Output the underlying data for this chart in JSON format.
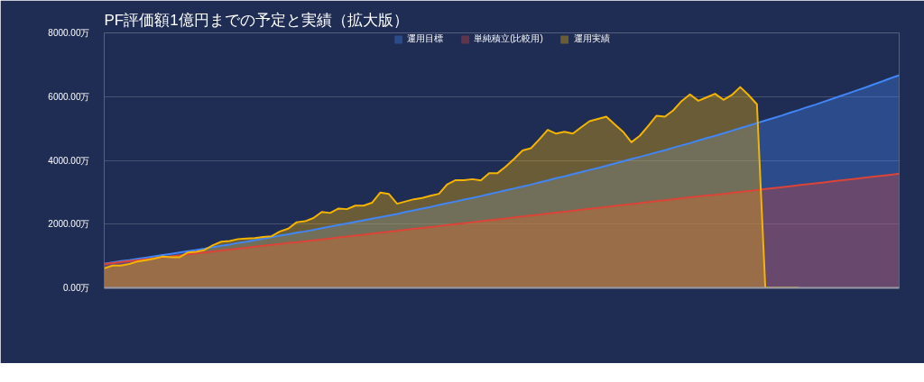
{
  "chart_data": {
    "type": "area",
    "title": "PF評価額1億円までの予定と実績（拡大版）",
    "categories": [
      null,
      null,
      null,
      null,
      null,
      null,
      null,
      null,
      null,
      null,
      null,
      null,
      null,
      null,
      null,
      null,
      null,
      null,
      null,
      null,
      null,
      null,
      null,
      null,
      null,
      null,
      null,
      null,
      null,
      null,
      null,
      null,
      null,
      null,
      null,
      null,
      null,
      null,
      null,
      null,
      null,
      null,
      null,
      null,
      null,
      null,
      null,
      null,
      null,
      null,
      null,
      null,
      null,
      null,
      null,
      null,
      null,
      null,
      null,
      null,
      null,
      null,
      null,
      null,
      null,
      null,
      null,
      null,
      null,
      null,
      null,
      null,
      null,
      null,
      null,
      null,
      null,
      null,
      null,
      null,
      null,
      null,
      null,
      null,
      null,
      null,
      null,
      null,
      null,
      null,
      null,
      null,
      null,
      null,
      null,
      null
    ],
    "ylim": [
      0,
      8000
    ],
    "yticks": [
      {
        "value": 0,
        "label": "0.00万"
      },
      {
        "value": 2000,
        "label": "2000.00万"
      },
      {
        "value": 4000,
        "label": "4000.00万"
      },
      {
        "value": 6000,
        "label": "6000.00万"
      },
      {
        "value": 8000,
        "label": "8000.00万"
      }
    ],
    "tick_labels": "y",
    "grid": "y",
    "legend": "top",
    "series": [
      {
        "name": "運用目標",
        "color": "#4285f4",
        "values": [
          760,
          800,
          840,
          870,
          910,
          950,
          990,
          1030,
          1070,
          1110,
          1150,
          1190,
          1230,
          1280,
          1320,
          1360,
          1410,
          1450,
          1500,
          1540,
          1590,
          1640,
          1680,
          1730,
          1770,
          1820,
          1870,
          1920,
          1970,
          2020,
          2070,
          2120,
          2170,
          2220,
          2270,
          2320,
          2380,
          2430,
          2490,
          2540,
          2600,
          2660,
          2710,
          2770,
          2820,
          2880,
          2940,
          3000,
          3060,
          3120,
          3180,
          3240,
          3310,
          3370,
          3440,
          3500,
          3570,
          3630,
          3700,
          3760,
          3830,
          3900,
          3970,
          4040,
          4110,
          4180,
          4250,
          4320,
          4400,
          4470,
          4540,
          4620,
          4700,
          4770,
          4850,
          4930,
          5010,
          5090,
          5170,
          5250,
          5330,
          5410,
          5500,
          5580,
          5670,
          5750,
          5840,
          5930,
          6020,
          6110,
          6200,
          6290,
          6390,
          6480,
          6580,
          6670
        ]
      },
      {
        "name": "単純積立(比較用)",
        "color": "#db4437",
        "values": [
          750,
          780,
          810,
          840,
          870,
          900,
          930,
          960,
          990,
          1020,
          1050,
          1080,
          1110,
          1140,
          1170,
          1200,
          1230,
          1260,
          1290,
          1320,
          1350,
          1380,
          1410,
          1430,
          1460,
          1490,
          1520,
          1550,
          1580,
          1610,
          1640,
          1670,
          1700,
          1730,
          1760,
          1790,
          1820,
          1850,
          1880,
          1910,
          1940,
          1970,
          2000,
          2030,
          2060,
          2090,
          2120,
          2150,
          2180,
          2210,
          2240,
          2270,
          2300,
          2330,
          2360,
          2390,
          2420,
          2450,
          2480,
          2510,
          2540,
          2570,
          2600,
          2630,
          2660,
          2690,
          2720,
          2750,
          2780,
          2810,
          2840,
          2870,
          2900,
          2920,
          2950,
          2980,
          3010,
          3040,
          3070,
          3100,
          3130,
          3160,
          3190,
          3220,
          3250,
          3280,
          3310,
          3340,
          3370,
          3400,
          3430,
          3460,
          3490,
          3520,
          3550,
          3580
        ]
      },
      {
        "name": "運用実績",
        "color": "#f4b400",
        "values": [
          610,
          700,
          700,
          750,
          830,
          870,
          920,
          980,
          960,
          960,
          1110,
          1130,
          1190,
          1340,
          1450,
          1470,
          1530,
          1550,
          1560,
          1600,
          1620,
          1770,
          1860,
          2060,
          2090,
          2190,
          2380,
          2350,
          2490,
          2470,
          2580,
          2580,
          2670,
          2990,
          2950,
          2640,
          2710,
          2780,
          2820,
          2890,
          2950,
          3250,
          3380,
          3380,
          3410,
          3370,
          3600,
          3600,
          3810,
          4050,
          4310,
          4380,
          4660,
          4960,
          4840,
          4900,
          4840,
          5040,
          5230,
          5300,
          5370,
          5130,
          4900,
          4570,
          4770,
          5080,
          5400,
          5370,
          5570,
          5860,
          6070,
          5870,
          5980,
          6090,
          5900,
          6050,
          6300,
          6050,
          5760,
          0,
          0,
          0,
          0,
          0,
          null,
          null,
          null,
          null,
          null,
          null,
          null,
          null,
          null,
          null,
          null,
          null
        ]
      }
    ]
  }
}
